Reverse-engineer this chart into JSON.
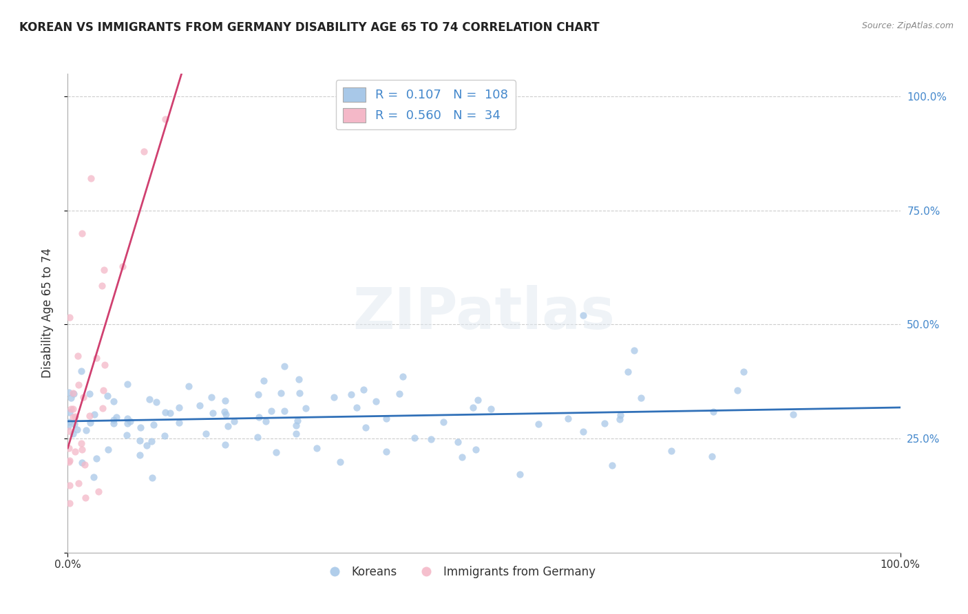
{
  "title": "KOREAN VS IMMIGRANTS FROM GERMANY DISABILITY AGE 65 TO 74 CORRELATION CHART",
  "source": "Source: ZipAtlas.com",
  "ylabel": "Disability Age 65 to 74",
  "watermark": "ZIPatlas",
  "blue_R": 0.107,
  "blue_N": 108,
  "pink_R": 0.56,
  "pink_N": 34,
  "blue_color": "#a8c8e8",
  "pink_color": "#f4b8c8",
  "blue_line_color": "#3070b8",
  "pink_line_color": "#d04070",
  "background_color": "#ffffff",
  "grid_color": "#cccccc",
  "right_tick_color": "#4488cc",
  "seed_blue": 42,
  "seed_pink": 99
}
